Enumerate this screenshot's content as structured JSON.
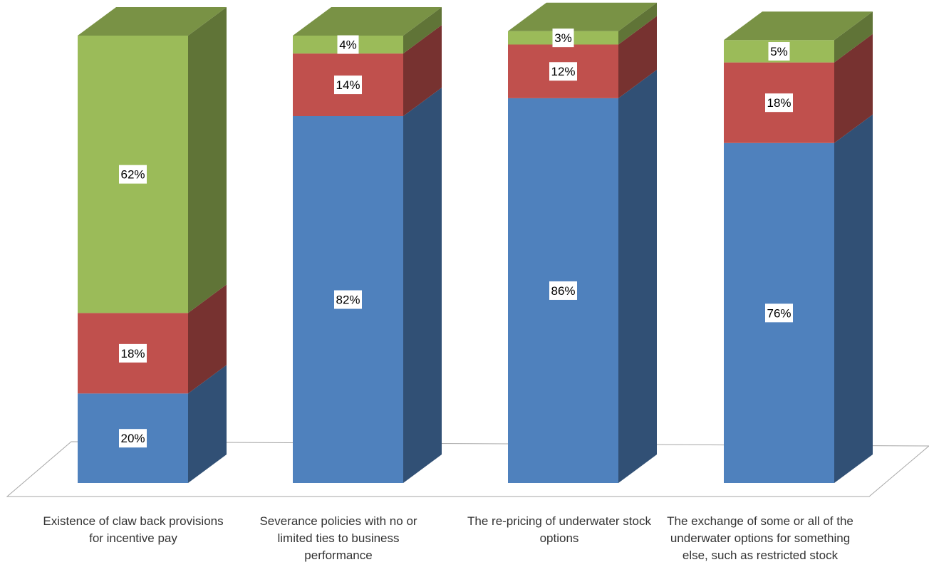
{
  "chart_data": {
    "type": "bar",
    "stacked": true,
    "three_d": true,
    "title": "",
    "xlabel": "",
    "ylabel": "",
    "ylim": [
      0,
      100
    ],
    "legend": "none",
    "grid": false,
    "categories": [
      "Existence of claw back provisions for incentive pay",
      "Severance policies with no or limited ties to business performance",
      "The re-pricing of underwater stock options",
      "The exchange of some or all of the underwater options for something else, such as restricted stock"
    ],
    "series": [
      {
        "values": [
          20,
          82,
          86,
          76
        ],
        "color": "#4f81bd",
        "labels": [
          "20%",
          "82%",
          "86%",
          "76%"
        ]
      },
      {
        "values": [
          18,
          14,
          12,
          18
        ],
        "color": "#c0504d",
        "labels": [
          "18%",
          "14%",
          "12%",
          "18%"
        ]
      },
      {
        "values": [
          62,
          4,
          3,
          5
        ],
        "color": "#9bbb59",
        "labels": [
          "62%",
          "4%",
          "3%",
          "5%"
        ]
      }
    ]
  }
}
